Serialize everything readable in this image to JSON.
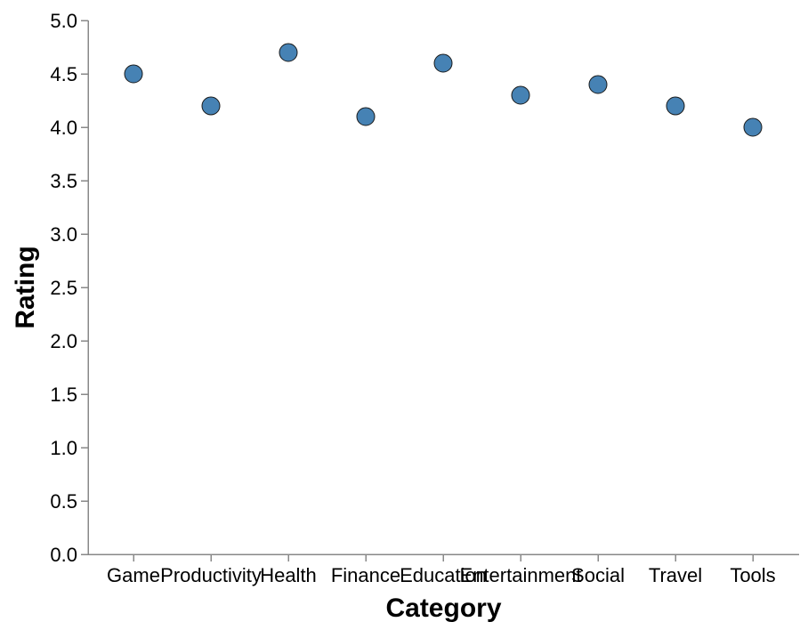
{
  "chart_data": {
    "type": "scatter",
    "title": "",
    "xlabel": "Category",
    "ylabel": "Rating",
    "categories": [
      "Game",
      "Productivity",
      "Health",
      "Finance",
      "Education",
      "Entertainment",
      "Social",
      "Travel",
      "Tools"
    ],
    "values": [
      4.5,
      4.2,
      4.7,
      4.1,
      4.6,
      4.3,
      4.4,
      4.2,
      4.0
    ],
    "ylim": [
      0,
      5
    ],
    "yticks": [
      "0.0",
      "0.5",
      "1.0",
      "1.5",
      "2.0",
      "2.5",
      "3.0",
      "3.5",
      "4.0",
      "4.5",
      "5.0"
    ],
    "grid": false,
    "legend": "none",
    "point_color": "#4682b4",
    "point_stroke": "#1a1a1a"
  }
}
